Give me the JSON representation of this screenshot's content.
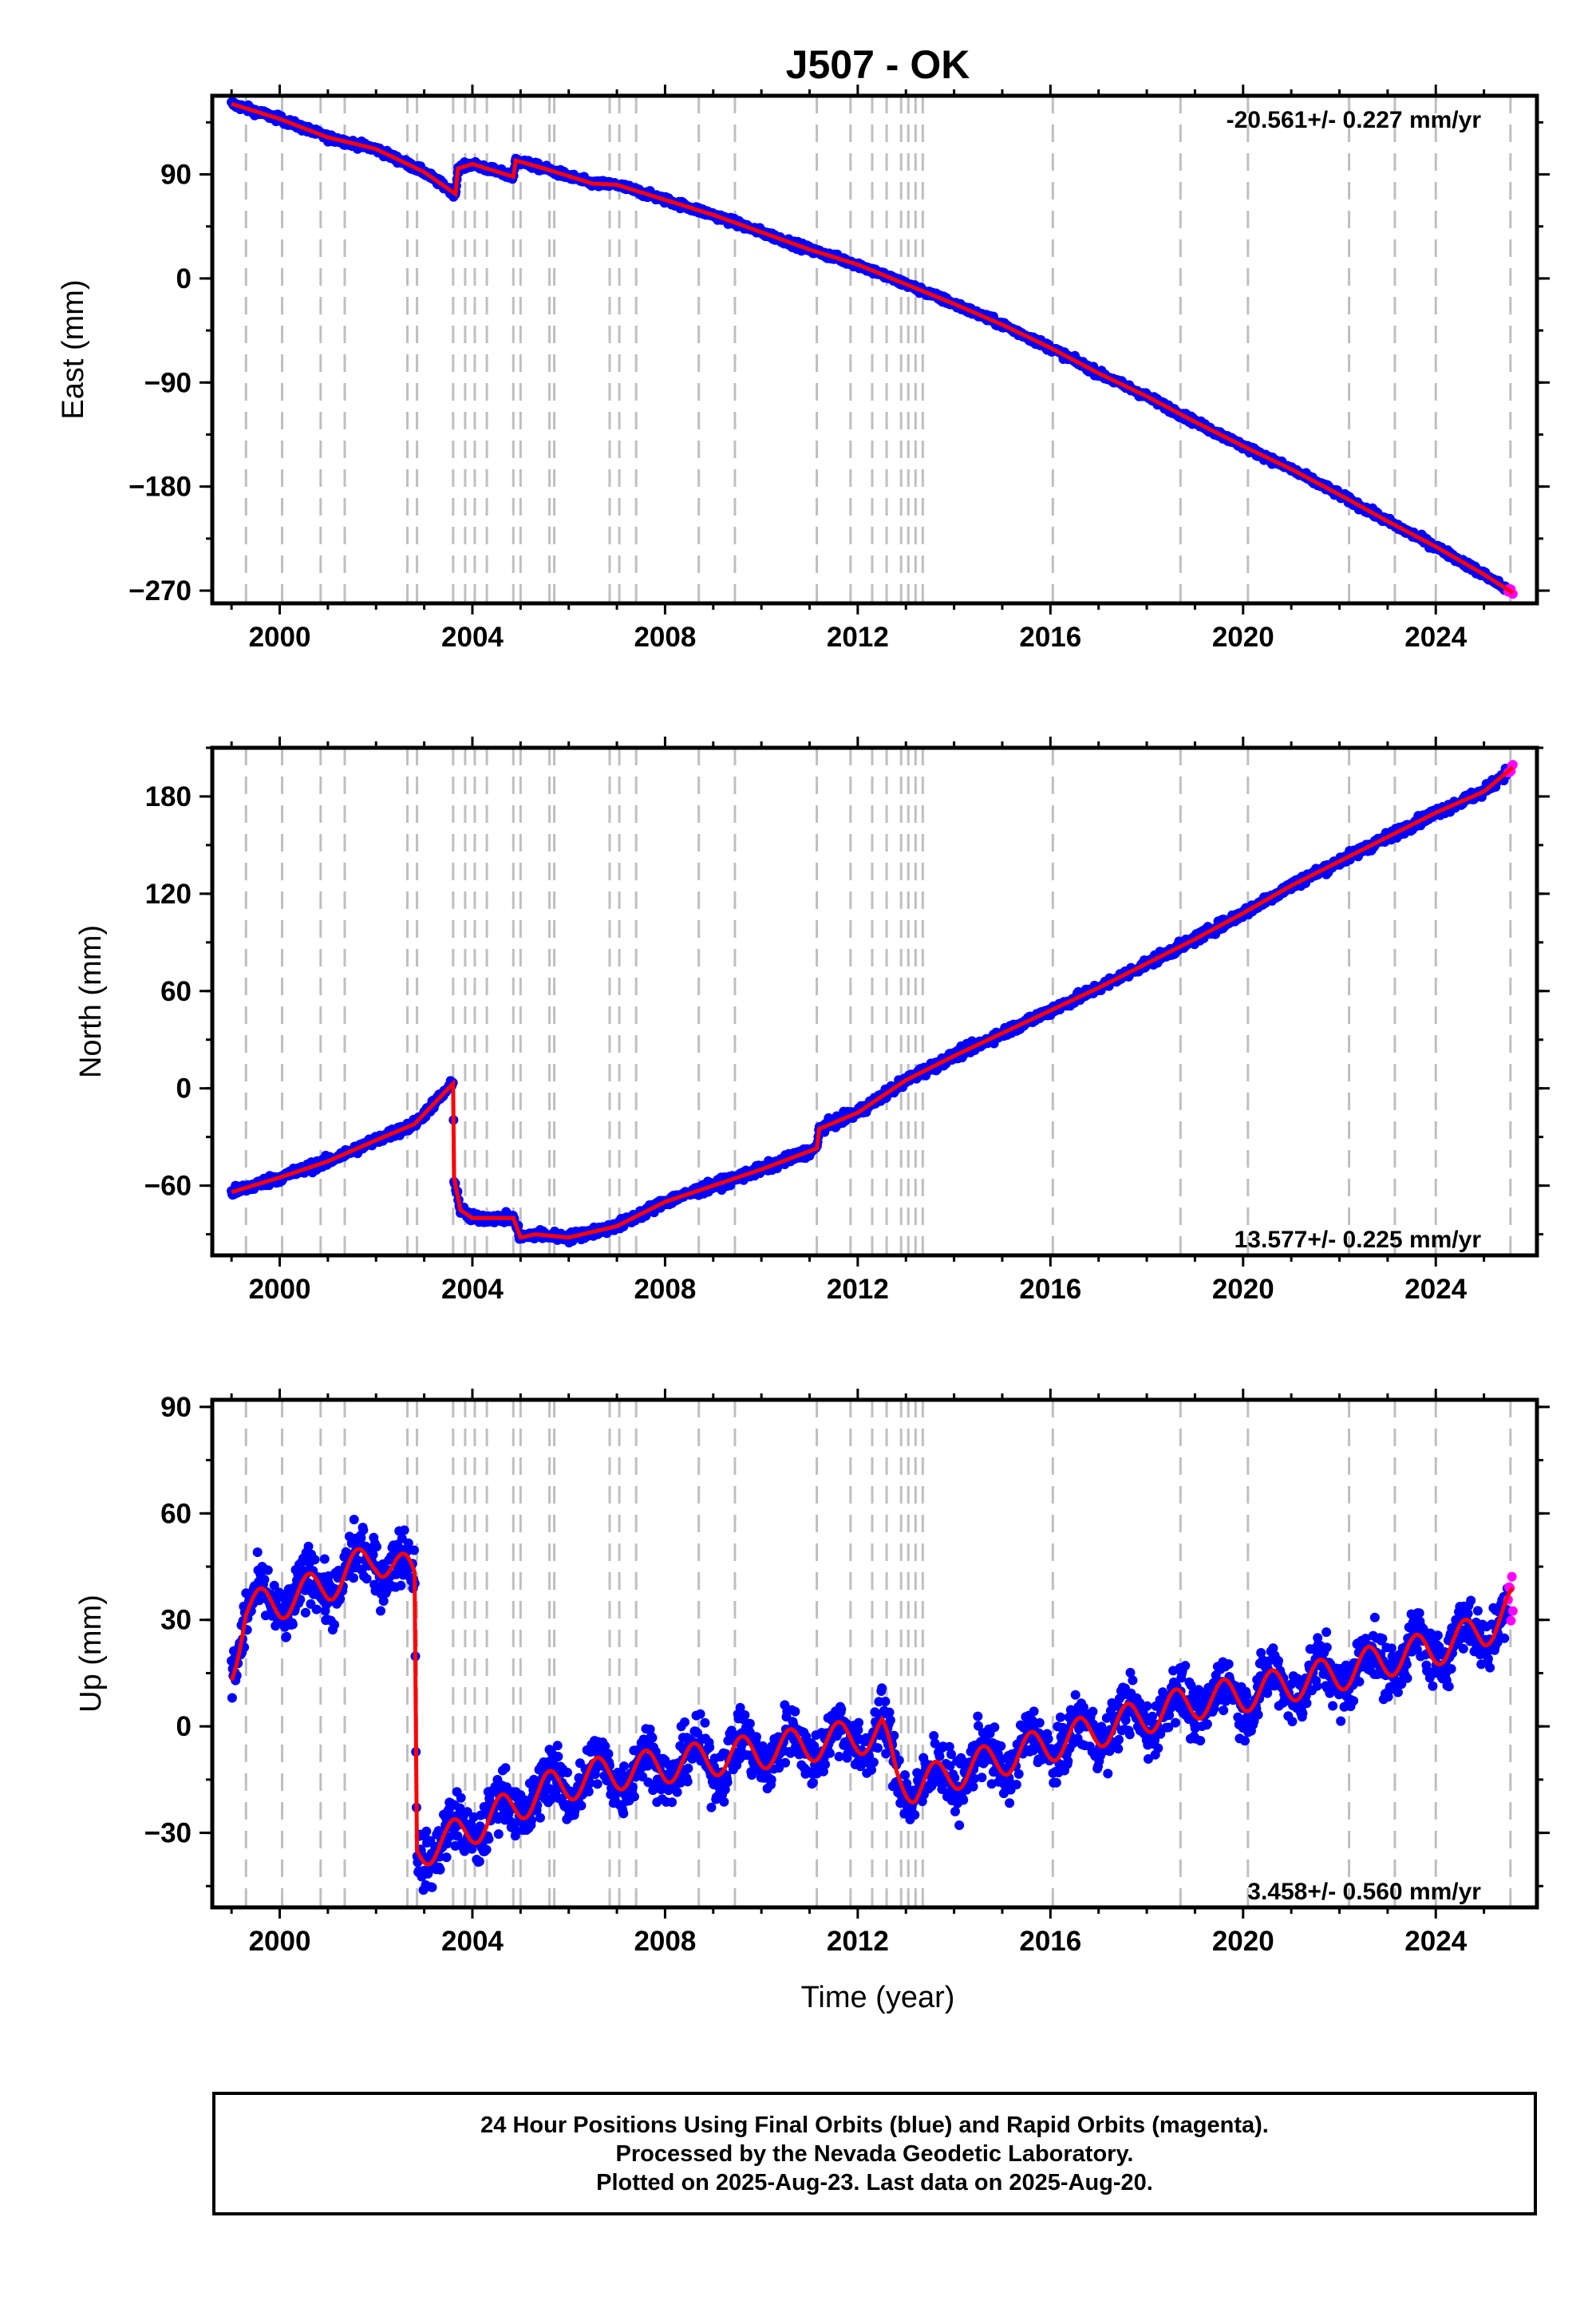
{
  "title": "J507 - OK",
  "x_axis_label": "Time (year)",
  "colors": {
    "final_orbits": "#0000ff",
    "rapid_orbits": "#ff00ff",
    "model_fit": "#ff0000",
    "event_lines": "#bfbfbf"
  },
  "event_years": [
    1999.3,
    2000.05,
    2000.85,
    2001.35,
    2002.65,
    2002.85,
    2003.6,
    2003.85,
    2004.05,
    2004.3,
    2004.85,
    2005.0,
    2005.6,
    2005.7,
    2006.85,
    2007.05,
    2007.4,
    2008.7,
    2009.45,
    2011.15,
    2011.85,
    2012.3,
    2012.6,
    2012.9,
    2013.05,
    2013.2,
    2013.35,
    2016.05,
    2018.7,
    2020.1,
    2022.2,
    2023.15,
    2024.0,
    2025.55
  ],
  "caption": {
    "line1": "24 Hour Positions Using Final Orbits (blue) and Rapid Orbits (magenta).",
    "line2": "Processed by the Nevada Geodetic Laboratory.",
    "line3": "Plotted on 2025-Aug-23. Last data on 2025-Aug-20."
  },
  "chart_data": [
    {
      "type": "scatter",
      "component": "East",
      "ylabel": "East (mm)",
      "rate_text": "-20.561+/- 0.227 mm/yr",
      "xlim": [
        1998.6,
        2026.1
      ],
      "ylim": [
        -281,
        158
      ],
      "x_ticks": [
        2000,
        2004,
        2008,
        2012,
        2016,
        2020,
        2024
      ],
      "y_ticks": [
        90,
        0,
        -90,
        -180,
        -270
      ],
      "y_tick_labels": [
        "90",
        "0",
        "−90",
        "−180",
        "−270"
      ],
      "x": [
        1999.0,
        2000.0,
        2001.0,
        2002.0,
        2003.0,
        2003.65,
        2003.7,
        2004.0,
        2004.85,
        2004.9,
        2005.5,
        2006.5,
        2007.0,
        2008.0,
        2009.0,
        2010.0,
        2011.0,
        2012.0,
        2013.0,
        2014.0,
        2015.0,
        2016.0,
        2017.0,
        2018.0,
        2019.0,
        2020.0,
        2021.0,
        2022.0,
        2023.0,
        2024.0,
        2025.0,
        2025.6
      ],
      "y": [
        151,
        138,
        122,
        112,
        92,
        73,
        95,
        99,
        88,
        102,
        95,
        82,
        81,
        68,
        55,
        40,
        25,
        12,
        -5,
        -22,
        -40,
        -60,
        -82,
        -102,
        -124,
        -145,
        -165,
        -187,
        -210,
        -232,
        -256,
        -272
      ],
      "noise": 3
    },
    {
      "type": "scatter",
      "component": "North",
      "ylabel": "North (mm)",
      "rate_text": "13.577+/- 0.225 mm/yr",
      "xlim": [
        1998.6,
        2026.1
      ],
      "ylim": [
        -103,
        210
      ],
      "x_ticks": [
        2000,
        2004,
        2008,
        2012,
        2016,
        2020,
        2024
      ],
      "y_ticks": [
        180,
        120,
        60,
        0,
        -60
      ],
      "y_tick_labels": [
        "180",
        "120",
        "60",
        "0",
        "−60"
      ],
      "x": [
        1999.0,
        2000.0,
        2001.0,
        2002.0,
        2002.8,
        2003.6,
        2003.62,
        2003.75,
        2004.0,
        2004.85,
        2005.0,
        2005.3,
        2006.0,
        2007.0,
        2008.0,
        2009.0,
        2010.0,
        2011.15,
        2011.2,
        2012.0,
        2013.0,
        2014.0,
        2015.0,
        2016.0,
        2017.0,
        2018.0,
        2019.0,
        2020.0,
        2021.0,
        2022.0,
        2023.0,
        2024.0,
        2025.0,
        2025.6
      ],
      "y": [
        -64,
        -55,
        -45,
        -32,
        -22,
        3,
        -55,
        -75,
        -80,
        -80,
        -92,
        -90,
        -92,
        -85,
        -70,
        -60,
        -50,
        -37,
        -25,
        -15,
        5,
        20,
        34,
        48,
        62,
        77,
        92,
        108,
        125,
        140,
        155,
        170,
        183,
        198
      ],
      "noise": 3
    },
    {
      "type": "scatter",
      "component": "Up",
      "ylabel": "Up (mm)",
      "rate_text": "3.458+/- 0.560 mm/yr",
      "xlim": [
        1998.6,
        2026.1
      ],
      "ylim": [
        -51,
        92
      ],
      "x_ticks": [
        2000,
        2004,
        2008,
        2012,
        2016,
        2020,
        2024
      ],
      "y_ticks": [
        90,
        60,
        30,
        0,
        -30
      ],
      "y_tick_labels": [
        "90",
        "60",
        "30",
        "0",
        "−30"
      ],
      "x": [
        1999.0,
        1999.3,
        2000.0,
        2001.0,
        2002.0,
        2002.8,
        2002.85,
        2003.5,
        2004.5,
        2005.5,
        2006.5,
        2007.5,
        2008.5,
        2009.5,
        2010.5,
        2011.5,
        2012.5,
        2012.8,
        2013.2,
        2014.0,
        2015.0,
        2016.0,
        2017.0,
        2018.0,
        2019.0,
        2020.0,
        2021.0,
        2022.0,
        2023.0,
        2024.0,
        2025.0,
        2025.6
      ],
      "y": [
        17,
        33,
        35,
        40,
        48,
        42,
        -35,
        -32,
        -25,
        -18,
        -14,
        -12,
        -10,
        -8,
        -6,
        -4,
        -2,
        -14,
        -17,
        -13,
        -9,
        -5,
        -1,
        3,
        7,
        9,
        12,
        15,
        19,
        22,
        27,
        34
      ],
      "noise": 8,
      "seasonal_amplitude": 5
    }
  ]
}
